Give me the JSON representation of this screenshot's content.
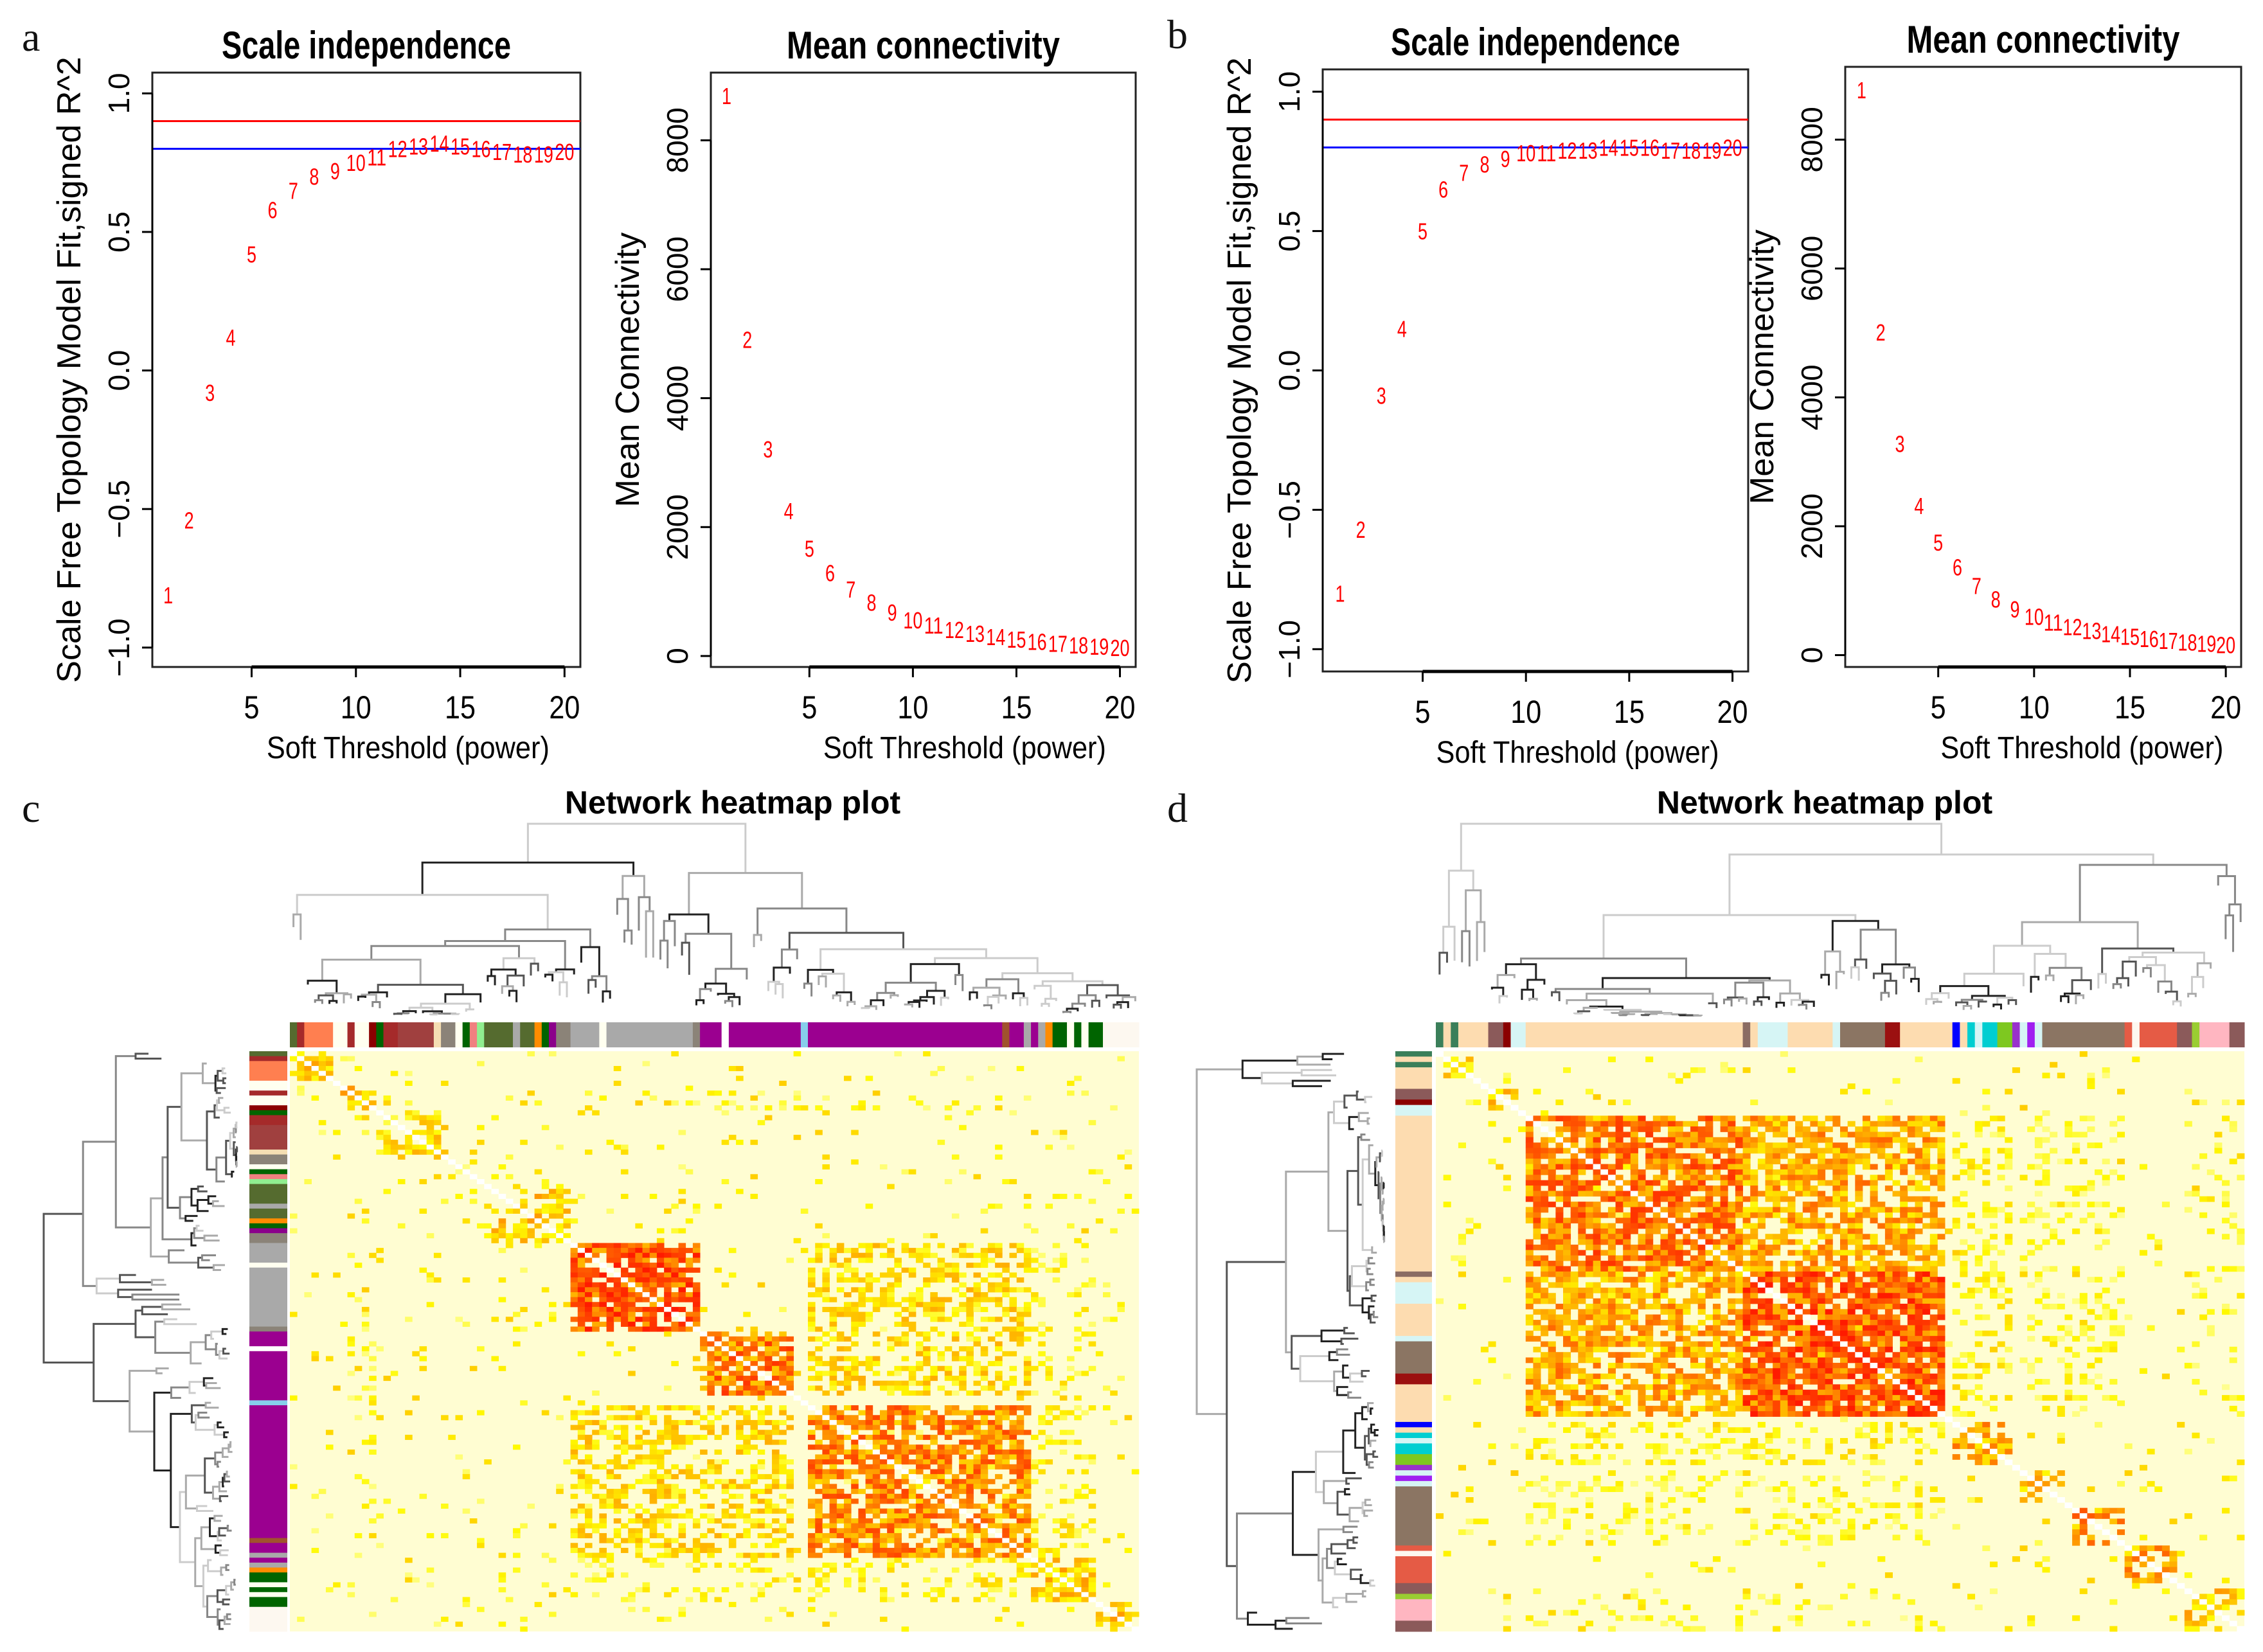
{
  "panel_labels": [
    "a",
    "b",
    "c",
    "d"
  ],
  "chart_data": [
    {
      "id": "a_scale",
      "panel": "a",
      "type": "scatter",
      "title": "Scale independence",
      "xlabel": "Soft Threshold (power)",
      "ylabel": "Scale Free Topology Model Fit,signed R^2",
      "xlim": [
        0.24,
        20.76
      ],
      "ylim": [
        -1.07,
        1.075
      ],
      "xticks": [
        5,
        10,
        15,
        20
      ],
      "xtick_labels": [
        "5",
        "10",
        "15",
        "20"
      ],
      "yticks": [
        -1.0,
        -0.5,
        0.0,
        0.5,
        1.0
      ],
      "ytick_labels": [
        "−1.0",
        "−0.5",
        "0.0",
        "0.5",
        "1.0"
      ],
      "hlines": [
        {
          "y": 0.9,
          "color": "#ff0000"
        },
        {
          "y": 0.8,
          "color": "#0000ff"
        }
      ],
      "point_color": "#ff0000",
      "x": [
        "1",
        "2",
        "3",
        "4",
        "5",
        "6",
        "7",
        "8",
        "9",
        "10",
        "11",
        "12",
        "13",
        "14",
        "15",
        "16",
        "17",
        "18",
        "19",
        "20"
      ],
      "y": [
        -0.81,
        -0.54,
        -0.08,
        0.12,
        0.42,
        0.58,
        0.65,
        0.7,
        0.72,
        0.75,
        0.77,
        0.8,
        0.81,
        0.82,
        0.81,
        0.8,
        0.79,
        0.78,
        0.78,
        0.79
      ]
    },
    {
      "id": "a_mean",
      "panel": "a",
      "type": "scatter",
      "title": "Mean connectivity",
      "xlabel": "Soft Threshold (power)",
      "ylabel": "Mean Connectivity",
      "xlim": [
        0.24,
        20.76
      ],
      "ylim": [
        -170,
        9050
      ],
      "xticks": [
        5,
        10,
        15,
        20
      ],
      "xtick_labels": [
        "5",
        "10",
        "15",
        "20"
      ],
      "yticks": [
        0,
        2000,
        4000,
        6000,
        8000
      ],
      "ytick_labels": [
        "0",
        "2000",
        "4000",
        "6000",
        "8000"
      ],
      "hlines": [],
      "point_color": "#ff0000",
      "x": [
        "1",
        "2",
        "3",
        "4",
        "5",
        "6",
        "7",
        "8",
        "9",
        "10",
        "11",
        "12",
        "13",
        "14",
        "15",
        "16",
        "17",
        "18",
        "19",
        "20"
      ],
      "y": [
        8690,
        4910,
        3210,
        2250,
        1670,
        1290,
        1035,
        830,
        675,
        560,
        480,
        410,
        350,
        300,
        260,
        225,
        195,
        170,
        150,
        130
      ]
    },
    {
      "id": "b_scale",
      "panel": "b",
      "type": "scatter",
      "title": "Scale independence",
      "xlabel": "Soft Threshold (power)",
      "ylabel": "Scale Free Topology Model Fit,signed R^2",
      "xlim": [
        0.16,
        20.76
      ],
      "ylim": [
        -1.08,
        1.08
      ],
      "xticks": [
        5,
        10,
        15,
        20
      ],
      "xtick_labels": [
        "5",
        "10",
        "15",
        "20"
      ],
      "yticks": [
        -1.0,
        -0.5,
        0.0,
        0.5,
        1.0
      ],
      "ytick_labels": [
        "−1.0",
        "−0.5",
        "0.0",
        "0.5",
        "1.0"
      ],
      "hlines": [
        {
          "y": 0.9,
          "color": "#ff0000"
        },
        {
          "y": 0.8,
          "color": "#0000ff"
        }
      ],
      "point_color": "#ff0000",
      "x": [
        "1",
        "2",
        "3",
        "4",
        "5",
        "6",
        "7",
        "8",
        "9",
        "10",
        "11",
        "12",
        "13",
        "14",
        "15",
        "16",
        "17",
        "18",
        "19",
        "20"
      ],
      "y": [
        -0.8,
        -0.57,
        -0.09,
        0.15,
        0.5,
        0.65,
        0.71,
        0.74,
        0.76,
        0.78,
        0.78,
        0.79,
        0.79,
        0.8,
        0.8,
        0.8,
        0.79,
        0.79,
        0.79,
        0.8
      ]
    },
    {
      "id": "b_mean",
      "panel": "b",
      "type": "scatter",
      "title": "Mean connectivity",
      "xlabel": "Soft Threshold (power)",
      "ylabel": "Mean Connectivity",
      "xlim": [
        0.15,
        20.8
      ],
      "ylim": [
        -184,
        9130
      ],
      "xticks": [
        5,
        10,
        15,
        20
      ],
      "xtick_labels": [
        "5",
        "10",
        "15",
        "20"
      ],
      "yticks": [
        0,
        2000,
        4000,
        6000,
        8000
      ],
      "ytick_labels": [
        "0",
        "2000",
        "4000",
        "6000",
        "8000"
      ],
      "hlines": [],
      "point_color": "#ff0000",
      "x": [
        "1",
        "2",
        "3",
        "4",
        "5",
        "6",
        "7",
        "8",
        "9",
        "10",
        "11",
        "12",
        "13",
        "14",
        "15",
        "16",
        "17",
        "18",
        "19",
        "20"
      ],
      "y": [
        8770,
        5010,
        3280,
        2320,
        1750,
        1365,
        1075,
        870,
        715,
        600,
        510,
        440,
        380,
        330,
        290,
        255,
        225,
        200,
        180,
        160
      ]
    },
    {
      "id": "c_heatmap",
      "panel": "c",
      "type": "heatmap",
      "title": "Network heatmap plot",
      "background": "#fffdd2",
      "modules": [
        [
          "#556b2f",
          1
        ],
        [
          "#a52a2a",
          1
        ],
        [
          "#ff7f50",
          4
        ],
        [
          "#fffff0",
          2
        ],
        [
          "#a52a2a",
          1
        ],
        [
          "#fffff0",
          2
        ],
        [
          "#8b0000",
          1
        ],
        [
          "#006400",
          1
        ],
        [
          "#a52a2a",
          2
        ],
        [
          "#a0403f",
          5
        ],
        [
          "#f5deb3",
          1
        ],
        [
          "#8b8378",
          2
        ],
        [
          "#fffff0",
          1
        ],
        [
          "#006400",
          1
        ],
        [
          "#f08080",
          1
        ],
        [
          "#90ee90",
          1
        ],
        [
          "#556b2f",
          4
        ],
        [
          "#a9a9a9",
          1
        ],
        [
          "#556b2f",
          2
        ],
        [
          "#ff8c00",
          1
        ],
        [
          "#006400",
          1
        ],
        [
          "#8b008b",
          1
        ],
        [
          "#8b8378",
          2
        ],
        [
          "#a9a9a9",
          4
        ],
        [
          "#fffff0",
          1
        ],
        [
          "#a9a9a9",
          12
        ],
        [
          "#8b8378",
          1
        ],
        [
          "#9b0090",
          3
        ],
        [
          "#ffffff",
          1
        ],
        [
          "#9b0090",
          10
        ],
        [
          "#87ceeb",
          1
        ],
        [
          "#9b0090",
          27
        ],
        [
          "#a0522d",
          1
        ],
        [
          "#9b0090",
          2
        ],
        [
          "#a9a9a9",
          1
        ],
        [
          "#9b0090",
          1
        ],
        [
          "#a9a9a9",
          1
        ],
        [
          "#ff8c00",
          1
        ],
        [
          "#006400",
          2
        ],
        [
          "#fffff0",
          1
        ],
        [
          "#006400",
          1
        ],
        [
          "#fffff0",
          1
        ],
        [
          "#006400",
          2
        ],
        [
          "#fdf8f0",
          5
        ]
      ],
      "blocks": [
        [
          0,
          6,
          0,
          6,
          0.5,
          0.5
        ],
        [
          7,
          12,
          7,
          12,
          0.5,
          0.5
        ],
        [
          12,
          22,
          12,
          22,
          0.45,
          0.5
        ],
        [
          22,
          26,
          22,
          26,
          0.35,
          0.5
        ],
        [
          27,
          39,
          27,
          39,
          0.5,
          0.5
        ],
        [
          39,
          57,
          39,
          57,
          0.9,
          0.9
        ],
        [
          57,
          70,
          57,
          70,
          0.75,
          0.8
        ],
        [
          39,
          70,
          72,
          103,
          0.45,
          0.45
        ],
        [
          72,
          103,
          72,
          103,
          0.7,
          0.75
        ],
        [
          103,
          112,
          103,
          112,
          0.5,
          0.6
        ],
        [
          112,
          117,
          112,
          117,
          0.5,
          0.6
        ],
        [
          8,
          12,
          40,
          100,
          0.3,
          0.12
        ],
        [
          39,
          70,
          103,
          112,
          0.35,
          0.2
        ],
        [
          72,
          103,
          103,
          112,
          0.35,
          0.2
        ]
      ]
    },
    {
      "id": "d_heatmap",
      "panel": "d",
      "type": "heatmap",
      "title": "Network heatmap plot",
      "background": "#fffdd2",
      "modules": [
        [
          "#3b7f5a",
          1
        ],
        [
          "#fddcb0",
          1
        ],
        [
          "#3b7f5a",
          1
        ],
        [
          "#fddcb0",
          4
        ],
        [
          "#8b5a5a",
          2
        ],
        [
          "#8b0000",
          1
        ],
        [
          "#d6f5f5",
          2
        ],
        [
          "#fddcb0",
          29
        ],
        [
          "#8b6c63",
          1
        ],
        [
          "#fddcb0",
          1
        ],
        [
          "#d6f5f5",
          4
        ],
        [
          "#fddcb0",
          6
        ],
        [
          "#d6f5f5",
          1
        ],
        [
          "#8b7563",
          6
        ],
        [
          "#9b1010",
          2
        ],
        [
          "#fddcb0",
          7
        ],
        [
          "#0000ff",
          1
        ],
        [
          "#fddcb0",
          1
        ],
        [
          "#00ced1",
          1
        ],
        [
          "#d6f5f5",
          1
        ],
        [
          "#00ced1",
          2
        ],
        [
          "#7ec820",
          2
        ],
        [
          "#9932cc",
          1
        ],
        [
          "#d6f5f5",
          1
        ],
        [
          "#a020f0",
          1
        ],
        [
          "#d6f5f5",
          1
        ],
        [
          "#8b7563",
          11
        ],
        [
          "#e55b45",
          1
        ],
        [
          "#fdf8f0",
          1
        ],
        [
          "#e55b45",
          5
        ],
        [
          "#8b5a5a",
          2
        ],
        [
          "#9acd32",
          1
        ],
        [
          "#ffb6c1",
          4
        ],
        [
          "#8b5a5a",
          2
        ]
      ],
      "blocks": [
        [
          1,
          5,
          1,
          5,
          0.45,
          0.5
        ],
        [
          7,
          11,
          7,
          11,
          0.5,
          0.6
        ],
        [
          12,
          41,
          12,
          41,
          0.75,
          0.8
        ],
        [
          41,
          68,
          41,
          68,
          0.85,
          0.85
        ],
        [
          12,
          41,
          41,
          68,
          0.6,
          0.7
        ],
        [
          69,
          77,
          69,
          77,
          0.6,
          0.6
        ],
        [
          78,
          84,
          78,
          84,
          0.5,
          0.5
        ],
        [
          85,
          92,
          85,
          92,
          0.75,
          0.6
        ],
        [
          92,
          99,
          92,
          99,
          0.6,
          0.6
        ],
        [
          100,
          108,
          100,
          108,
          0.5,
          0.5
        ],
        [
          12,
          68,
          69,
          77,
          0.35,
          0.25
        ],
        [
          12,
          68,
          78,
          92,
          0.3,
          0.2
        ],
        [
          12,
          68,
          100,
          108,
          0.3,
          0.1
        ]
      ]
    }
  ]
}
